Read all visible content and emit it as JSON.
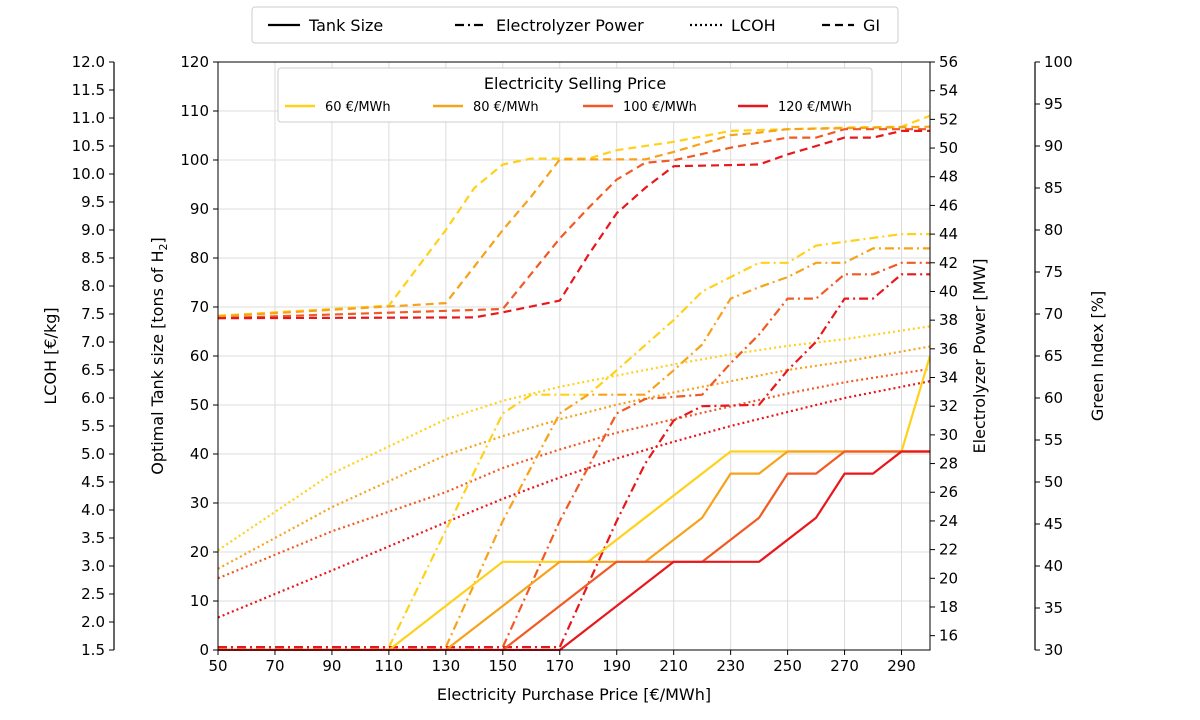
{
  "chart_data": {
    "type": "line",
    "xlabel": "Electricity Purchase Price [€/MWh]",
    "xlim": [
      50,
      300
    ],
    "xticks": [
      "50",
      "70",
      "90",
      "110",
      "130",
      "150",
      "170",
      "190",
      "210",
      "230",
      "250",
      "270",
      "290"
    ],
    "axes": {
      "tank": {
        "label": "Optimal Tank size [tons of H",
        "label_sub": "2",
        "label_end": "]",
        "ylim": [
          0,
          120
        ],
        "ticks": [
          "0",
          "10",
          "20",
          "30",
          "40",
          "50",
          "60",
          "70",
          "80",
          "90",
          "100",
          "110",
          "120"
        ]
      },
      "lcoh": {
        "label": "LCOH [€/kg]",
        "ylim": [
          1.5,
          12.0
        ],
        "ticks": [
          "1.5",
          "2.0",
          "2.5",
          "3.0",
          "3.5",
          "4.0",
          "4.5",
          "5.0",
          "5.5",
          "6.0",
          "6.5",
          "7.0",
          "7.5",
          "8.0",
          "8.5",
          "9.0",
          "9.5",
          "10.0",
          "10.5",
          "11.0",
          "11.5",
          "12.0"
        ]
      },
      "power": {
        "label": "Electrolyzer Power [MW]",
        "ylim": [
          15,
          56
        ],
        "ticks": [
          "16",
          "18",
          "20",
          "22",
          "24",
          "26",
          "28",
          "30",
          "32",
          "34",
          "36",
          "38",
          "40",
          "42",
          "44",
          "46",
          "48",
          "50",
          "52",
          "54",
          "56"
        ]
      },
      "gi": {
        "label": "Green Index [%]",
        "ylim": [
          30,
          100
        ],
        "ticks": [
          "30",
          "35",
          "40",
          "45",
          "50",
          "55",
          "60",
          "65",
          "70",
          "75",
          "80",
          "85",
          "90",
          "95",
          "100"
        ]
      }
    },
    "line_style_legend": [
      {
        "label": "Tank Size",
        "dash": ""
      },
      {
        "label": "Electrolyzer Power",
        "dash": "9 4 2 4"
      },
      {
        "label": "LCOH",
        "dash": "2 3"
      },
      {
        "label": "GI",
        "dash": "8 5"
      }
    ],
    "color_legend_title": "Electricity Selling Price",
    "series": [
      {
        "name": "60 €/MWh",
        "color": "#FFD11A",
        "tank": [
          [
            50,
            0
          ],
          [
            110,
            0
          ],
          [
            150,
            18
          ],
          [
            180,
            18
          ],
          [
            230,
            40.5
          ],
          [
            290,
            40.5
          ],
          [
            300,
            60
          ]
        ],
        "power": [
          [
            50,
            15.2
          ],
          [
            110,
            15.2
          ],
          [
            150,
            31.5
          ],
          [
            160,
            32.8
          ],
          [
            180,
            32.8
          ],
          [
            190,
            34.5
          ],
          [
            210,
            38
          ],
          [
            220,
            40
          ],
          [
            230,
            41
          ],
          [
            240,
            42
          ],
          [
            250,
            42
          ],
          [
            260,
            43.2
          ],
          [
            290,
            44
          ],
          [
            300,
            44
          ]
        ],
        "lcoh": [
          [
            50,
            3.28
          ],
          [
            90,
            4.65
          ],
          [
            130,
            5.62
          ],
          [
            150,
            5.95
          ],
          [
            170,
            6.2
          ],
          [
            190,
            6.4
          ],
          [
            210,
            6.6
          ],
          [
            230,
            6.78
          ],
          [
            250,
            6.93
          ],
          [
            270,
            7.05
          ],
          [
            300,
            7.28
          ]
        ],
        "gi": [
          [
            50,
            69.8
          ],
          [
            110,
            71
          ],
          [
            130,
            80
          ],
          [
            140,
            85
          ],
          [
            150,
            87.8
          ],
          [
            160,
            88.5
          ],
          [
            180,
            88.5
          ],
          [
            190,
            89.5
          ],
          [
            210,
            90.5
          ],
          [
            230,
            91.8
          ],
          [
            250,
            92
          ],
          [
            270,
            92.2
          ],
          [
            290,
            92.3
          ],
          [
            300,
            93.6
          ]
        ]
      },
      {
        "name": "80 €/MWh",
        "color": "#F7A21B",
        "tank": [
          [
            50,
            0
          ],
          [
            130,
            0
          ],
          [
            170,
            18
          ],
          [
            200,
            18
          ],
          [
            220,
            27
          ],
          [
            230,
            36
          ],
          [
            240,
            36
          ],
          [
            250,
            40.5
          ],
          [
            300,
            40.5
          ]
        ],
        "power": [
          [
            50,
            15.2
          ],
          [
            130,
            15.2
          ],
          [
            150,
            24
          ],
          [
            170,
            31.5
          ],
          [
            180,
            32.8
          ],
          [
            200,
            32.8
          ],
          [
            210,
            34.5
          ],
          [
            220,
            36.3
          ],
          [
            230,
            39.5
          ],
          [
            240,
            40.3
          ],
          [
            250,
            41
          ],
          [
            260,
            42
          ],
          [
            270,
            42
          ],
          [
            280,
            43
          ],
          [
            300,
            43
          ]
        ],
        "lcoh": [
          [
            50,
            2.95
          ],
          [
            90,
            4.05
          ],
          [
            130,
            4.98
          ],
          [
            150,
            5.32
          ],
          [
            170,
            5.62
          ],
          [
            190,
            5.88
          ],
          [
            210,
            6.1
          ],
          [
            230,
            6.3
          ],
          [
            250,
            6.5
          ],
          [
            270,
            6.65
          ],
          [
            300,
            6.92
          ]
        ],
        "gi": [
          [
            50,
            69.7
          ],
          [
            130,
            71.3
          ],
          [
            150,
            80
          ],
          [
            160,
            84
          ],
          [
            170,
            88.4
          ],
          [
            200,
            88.4
          ],
          [
            210,
            89.3
          ],
          [
            220,
            90.3
          ],
          [
            230,
            91.3
          ],
          [
            240,
            91.6
          ],
          [
            250,
            92
          ],
          [
            300,
            92.3
          ]
        ]
      },
      {
        "name": "100 €/MWh",
        "color": "#F15A24",
        "tank": [
          [
            50,
            0
          ],
          [
            150,
            0
          ],
          [
            190,
            18
          ],
          [
            220,
            18
          ],
          [
            240,
            27
          ],
          [
            250,
            36
          ],
          [
            260,
            36
          ],
          [
            270,
            40.5
          ],
          [
            300,
            40.5
          ]
        ],
        "power": [
          [
            50,
            15.2
          ],
          [
            150,
            15.2
          ],
          [
            170,
            24
          ],
          [
            190,
            31.5
          ],
          [
            200,
            32.5
          ],
          [
            220,
            32.8
          ],
          [
            230,
            35
          ],
          [
            240,
            37
          ],
          [
            250,
            39.5
          ],
          [
            260,
            39.5
          ],
          [
            270,
            41.2
          ],
          [
            280,
            41.2
          ],
          [
            290,
            42
          ],
          [
            300,
            42
          ]
        ],
        "lcoh": [
          [
            50,
            2.78
          ],
          [
            90,
            3.62
          ],
          [
            130,
            4.32
          ],
          [
            150,
            4.75
          ],
          [
            170,
            5.08
          ],
          [
            190,
            5.38
          ],
          [
            210,
            5.62
          ],
          [
            230,
            5.85
          ],
          [
            250,
            6.08
          ],
          [
            270,
            6.28
          ],
          [
            300,
            6.52
          ]
        ],
        "gi": [
          [
            50,
            69.5
          ],
          [
            150,
            70.6
          ],
          [
            170,
            79
          ],
          [
            180,
            82.6
          ],
          [
            190,
            86
          ],
          [
            200,
            88
          ],
          [
            210,
            88.3
          ],
          [
            230,
            89.8
          ],
          [
            240,
            90.4
          ],
          [
            250,
            91
          ],
          [
            260,
            91
          ],
          [
            270,
            92
          ],
          [
            300,
            92
          ]
        ]
      },
      {
        "name": "120 €/MWh",
        "color": "#E8171B",
        "tank": [
          [
            50,
            0
          ],
          [
            170,
            0
          ],
          [
            210,
            18
          ],
          [
            240,
            18
          ],
          [
            260,
            27
          ],
          [
            270,
            36
          ],
          [
            280,
            36
          ],
          [
            290,
            40.5
          ],
          [
            300,
            40.5
          ]
        ],
        "power": [
          [
            50,
            15.2
          ],
          [
            170,
            15.2
          ],
          [
            190,
            24
          ],
          [
            200,
            28
          ],
          [
            210,
            31
          ],
          [
            220,
            32
          ],
          [
            240,
            32.1
          ],
          [
            250,
            34.5
          ],
          [
            260,
            36.5
          ],
          [
            270,
            39.5
          ],
          [
            280,
            39.5
          ],
          [
            290,
            41.2
          ],
          [
            300,
            41.2
          ]
        ],
        "lcoh": [
          [
            50,
            2.08
          ],
          [
            90,
            2.92
          ],
          [
            130,
            3.78
          ],
          [
            150,
            4.2
          ],
          [
            170,
            4.58
          ],
          [
            190,
            4.92
          ],
          [
            210,
            5.22
          ],
          [
            230,
            5.5
          ],
          [
            250,
            5.75
          ],
          [
            270,
            6
          ],
          [
            300,
            6.3
          ]
        ],
        "gi": [
          [
            50,
            69.5
          ],
          [
            140,
            69.6
          ],
          [
            150,
            70.2
          ],
          [
            170,
            71.6
          ],
          [
            180,
            77
          ],
          [
            190,
            82
          ],
          [
            200,
            85
          ],
          [
            210,
            87.6
          ],
          [
            240,
            87.8
          ],
          [
            250,
            89
          ],
          [
            260,
            90
          ],
          [
            270,
            91
          ],
          [
            280,
            91
          ],
          [
            290,
            91.8
          ],
          [
            300,
            91.8
          ]
        ]
      }
    ]
  }
}
